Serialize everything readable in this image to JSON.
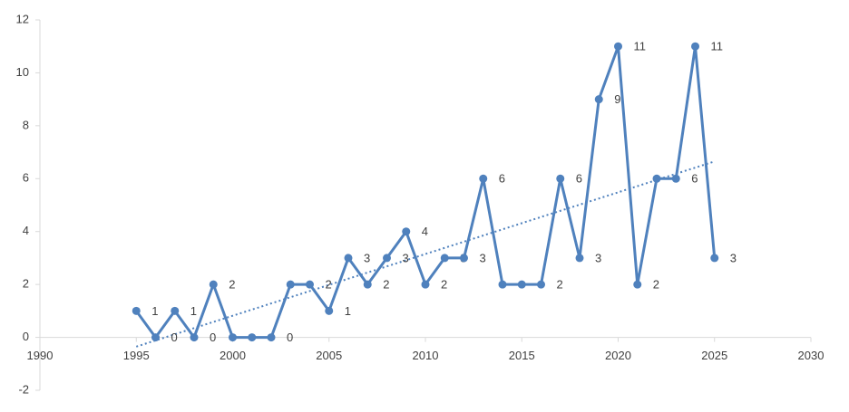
{
  "chart_data": {
    "type": "line",
    "x": [
      1995,
      1996,
      1997,
      1998,
      1999,
      2000,
      2001,
      2002,
      2003,
      2004,
      2005,
      2006,
      2007,
      2008,
      2009,
      2010,
      2011,
      2012,
      2013,
      2014,
      2015,
      2016,
      2017,
      2018,
      2019,
      2020,
      2021,
      2022,
      2023,
      2024,
      2025
    ],
    "series": [
      {
        "color": "#4f81bd",
        "values": [
          1,
          0,
          1,
          0,
          2,
          0,
          0,
          0,
          2,
          2,
          1,
          3,
          2,
          3,
          4,
          2,
          3,
          3,
          6,
          2,
          2,
          2,
          6,
          3,
          9,
          11,
          2,
          6,
          6,
          11,
          3
        ],
        "value_labels": [
          "1",
          "0",
          "1",
          "0",
          "2",
          null,
          null,
          "0",
          null,
          "2",
          "1",
          "3",
          "2",
          "3",
          "4",
          "2",
          "3",
          "3",
          "6",
          null,
          null,
          "2",
          "6",
          "3",
          "9",
          "11",
          "2",
          null,
          "6",
          "11",
          "3"
        ]
      }
    ],
    "trendline": {
      "color": "#4f81bd",
      "x": [
        1995,
        2025
      ],
      "values": [
        -0.35,
        6.65
      ]
    },
    "xlim": [
      1990,
      2030
    ],
    "xticks": [
      1990,
      1995,
      2000,
      2005,
      2010,
      2015,
      2020,
      2025,
      2030
    ],
    "ylim": [
      -2,
      12
    ],
    "yticks": [
      -2,
      0,
      2,
      4,
      6,
      8,
      10,
      12
    ],
    "grid": false
  }
}
